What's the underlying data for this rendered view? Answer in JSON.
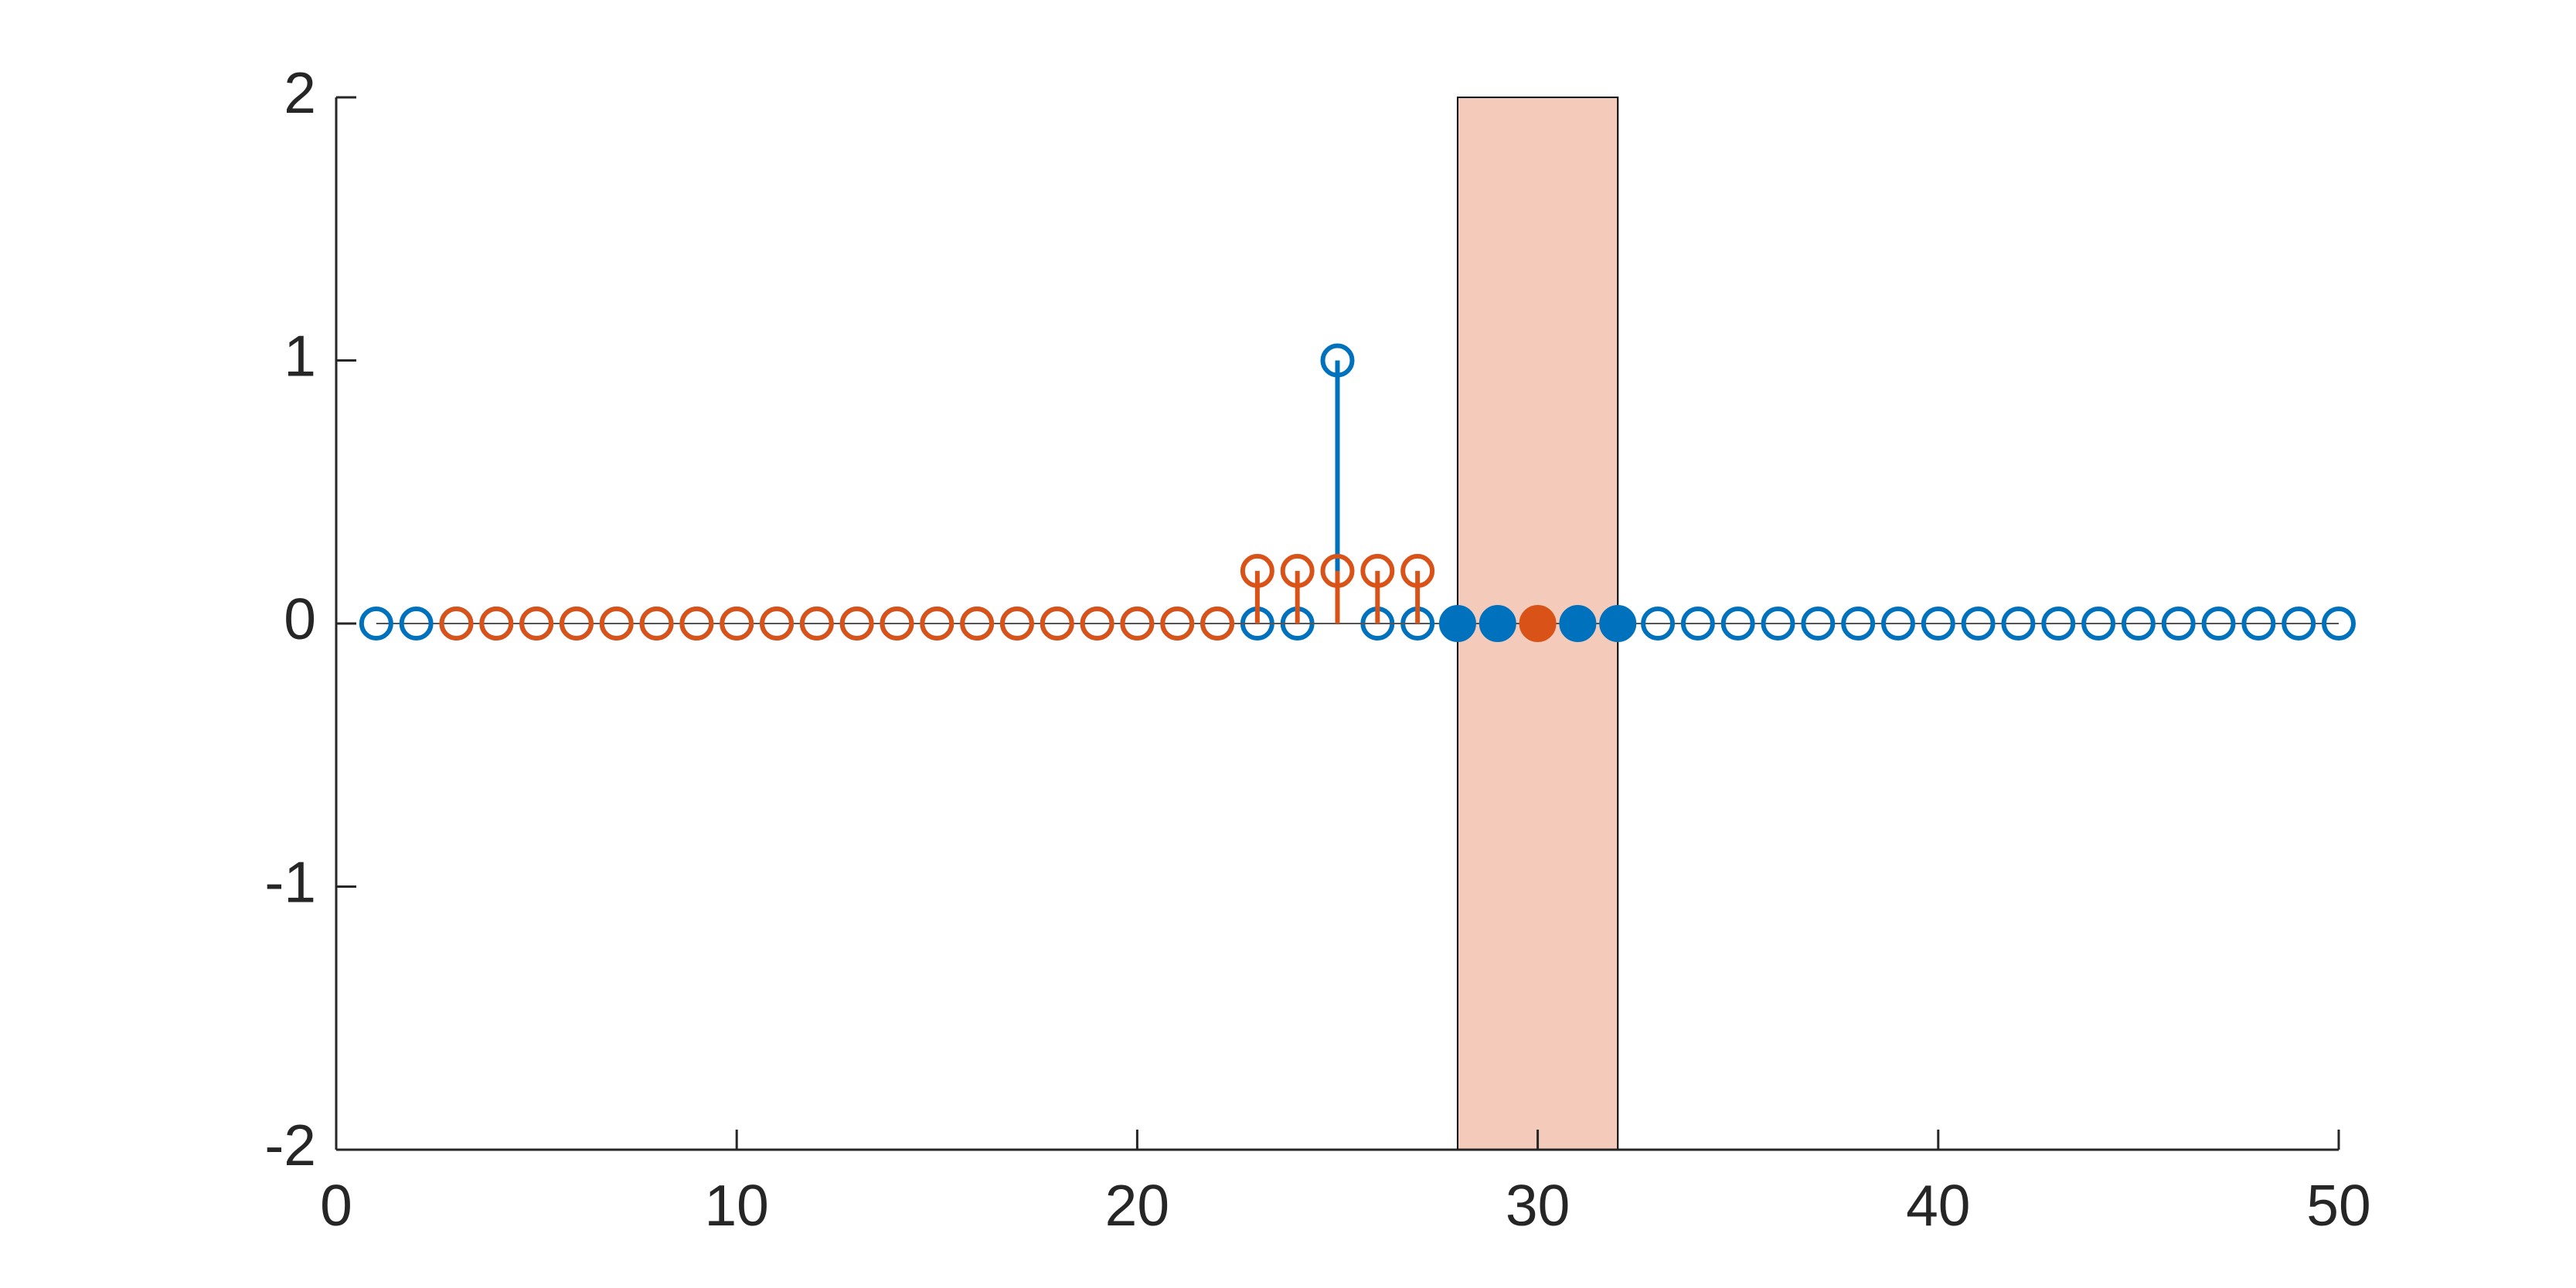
{
  "chart_data": {
    "type": "stem",
    "xlim": [
      0,
      50
    ],
    "ylim": [
      -2,
      2
    ],
    "xticks": [
      0,
      10,
      20,
      30,
      40,
      50
    ],
    "yticks": [
      -2,
      -1,
      0,
      1,
      2
    ],
    "span": {
      "x": [
        28,
        32
      ],
      "color": "#f4cbbb"
    },
    "series": [
      {
        "color": "#0072bd",
        "filled": false,
        "x": [
          1,
          2,
          3,
          4,
          5,
          6,
          7,
          8,
          9,
          10,
          11,
          12,
          13,
          14,
          15,
          16,
          17,
          18,
          19,
          20,
          21,
          22,
          23,
          24,
          25,
          26,
          27,
          33,
          34,
          35,
          36,
          37,
          38,
          39,
          40,
          41,
          42,
          43,
          44,
          45,
          46,
          47,
          48,
          49,
          50
        ],
        "values": [
          0,
          0,
          0,
          0,
          0,
          0,
          0,
          0,
          0,
          0,
          0,
          0,
          0,
          0,
          0,
          0,
          0,
          0,
          0,
          0,
          0,
          0,
          0,
          0,
          1,
          0,
          0,
          0,
          0,
          0,
          0,
          0,
          0,
          0,
          0,
          0,
          0,
          0,
          0,
          0,
          0,
          0,
          0,
          0,
          0
        ]
      },
      {
        "color": "#d95319",
        "filled": false,
        "x": [
          3,
          4,
          5,
          6,
          7,
          8,
          9,
          10,
          11,
          12,
          13,
          14,
          15,
          16,
          17,
          18,
          19,
          20,
          21,
          22,
          23,
          24,
          25,
          26,
          27
        ],
        "values": [
          0,
          0,
          0,
          0,
          0,
          0,
          0,
          0,
          0,
          0,
          0,
          0,
          0,
          0,
          0,
          0,
          0,
          0,
          0,
          0,
          0.2,
          0.2,
          0.2,
          0.2,
          0.2
        ]
      },
      {
        "color": "#0072bd",
        "filled": true,
        "x": [
          28,
          29,
          31,
          32
        ],
        "values": [
          0,
          0,
          0,
          0
        ]
      },
      {
        "color": "#d95319",
        "filled": true,
        "x": [
          30
        ],
        "values": [
          0
        ]
      }
    ]
  }
}
